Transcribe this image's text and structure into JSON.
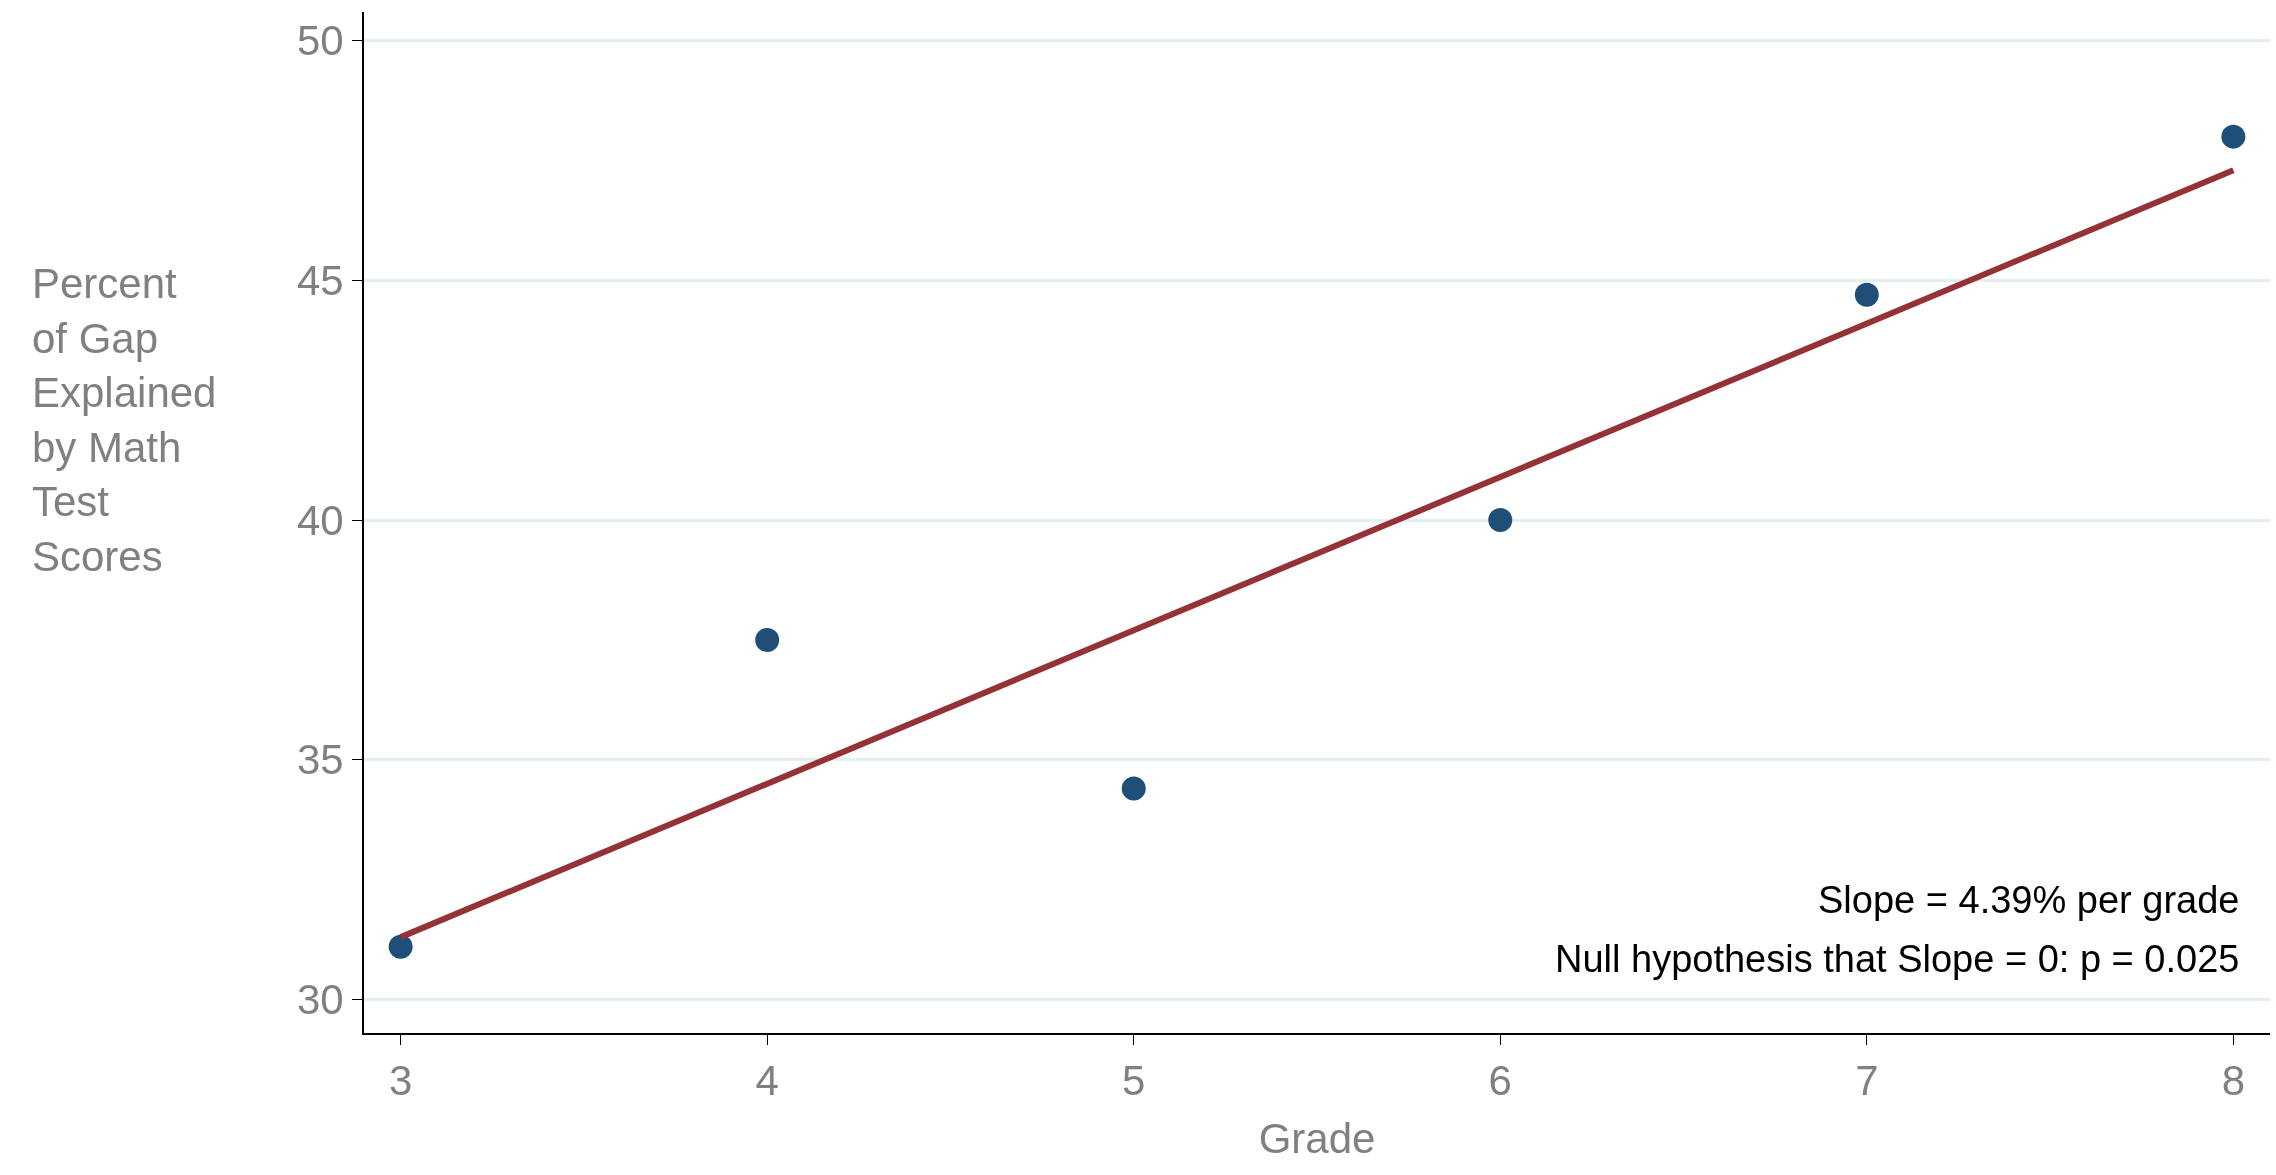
{
  "chart_data": {
    "type": "scatter",
    "xlabel": "Grade",
    "ylabel": "Percent\nof Gap\nExplained\nby Math\nTest\nScores",
    "xlim": [
      2.9,
      8.1
    ],
    "xticks": [
      3,
      4,
      5,
      6,
      7,
      8
    ],
    "ylim": [
      29.3,
      50.6
    ],
    "yticks": [
      30,
      35,
      40,
      45,
      50
    ],
    "grid": "y",
    "legend": false,
    "series": [
      {
        "marker": "circle",
        "color": "#1f4e79",
        "x": [
          3,
          4,
          5,
          6,
          7,
          8
        ],
        "values": [
          31.1,
          37.5,
          34.4,
          40.0,
          44.7,
          48.0
        ]
      },
      {
        "type": "line",
        "color": "#943237",
        "x": [
          3,
          8
        ],
        "values": [
          31.3,
          47.3
        ],
        "marker": "none",
        "line_style": "solid"
      }
    ],
    "annotations": [
      "Slope = 4.39% per grade",
      "Null hypothesis that Slope = 0: p = 0.025"
    ]
  }
}
